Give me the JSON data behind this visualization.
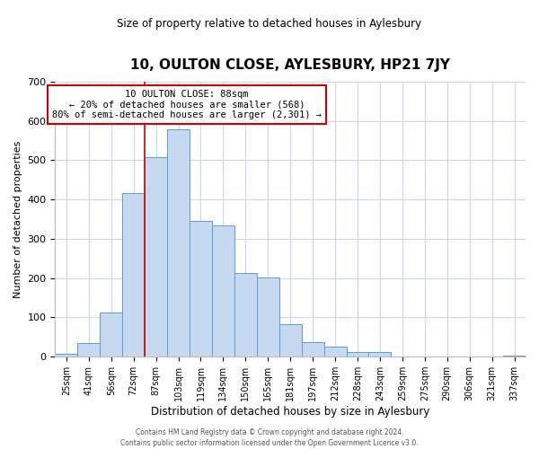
{
  "title": "10, OULTON CLOSE, AYLESBURY, HP21 7JY",
  "subtitle": "Size of property relative to detached houses in Aylesbury",
  "xlabel": "Distribution of detached houses by size in Aylesbury",
  "ylabel": "Number of detached properties",
  "bar_labels": [
    "25sqm",
    "41sqm",
    "56sqm",
    "72sqm",
    "87sqm",
    "103sqm",
    "119sqm",
    "134sqm",
    "150sqm",
    "165sqm",
    "181sqm",
    "197sqm",
    "212sqm",
    "228sqm",
    "243sqm",
    "259sqm",
    "275sqm",
    "290sqm",
    "306sqm",
    "321sqm",
    "337sqm"
  ],
  "bar_values": [
    8,
    35,
    113,
    417,
    507,
    578,
    345,
    333,
    214,
    202,
    83,
    37,
    26,
    13,
    13,
    0,
    0,
    0,
    0,
    0,
    3
  ],
  "bar_color": "#c7d9f0",
  "bar_edge_color": "#5b9bd5",
  "annotation_box_text_line1": "10 OULTON CLOSE: 88sqm",
  "annotation_box_text_line2": "← 20% of detached houses are smaller (568)",
  "annotation_box_text_line3": "80% of semi-detached houses are larger (2,301) →",
  "annotation_box_color": "#ffffff",
  "annotation_box_edge_color": "#cc0000",
  "marker_line_color": "#cc0000",
  "ylim": [
    0,
    700
  ],
  "yticks": [
    0,
    100,
    200,
    300,
    400,
    500,
    600,
    700
  ],
  "footer_line1": "Contains HM Land Registry data © Crown copyright and database right 2024.",
  "footer_line2": "Contains public sector information licensed under the Open Government Licence v3.0.",
  "bg_color": "#ffffff",
  "grid_color": "#c8d8ea"
}
